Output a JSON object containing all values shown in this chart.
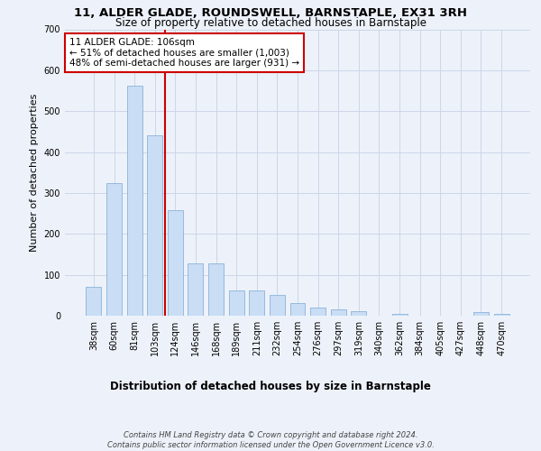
{
  "title": "11, ALDER GLADE, ROUNDSWELL, BARNSTAPLE, EX31 3RH",
  "subtitle": "Size of property relative to detached houses in Barnstaple",
  "xlabel": "Distribution of detached houses by size in Barnstaple",
  "ylabel": "Number of detached properties",
  "categories": [
    "38sqm",
    "60sqm",
    "81sqm",
    "103sqm",
    "124sqm",
    "146sqm",
    "168sqm",
    "189sqm",
    "211sqm",
    "232sqm",
    "254sqm",
    "276sqm",
    "297sqm",
    "319sqm",
    "340sqm",
    "362sqm",
    "384sqm",
    "405sqm",
    "427sqm",
    "448sqm",
    "470sqm"
  ],
  "values": [
    70,
    325,
    562,
    440,
    258,
    128,
    128,
    62,
    62,
    50,
    30,
    20,
    15,
    12,
    0,
    5,
    0,
    0,
    0,
    8,
    5
  ],
  "bar_color": "#c9ddf5",
  "bar_edge_color": "#7aa8d2",
  "grid_color": "#ccd6e8",
  "bg_color": "#edf2fa",
  "vline_color": "#cc0000",
  "vline_x": 3.5,
  "annotation_text": "11 ALDER GLADE: 106sqm\n← 51% of detached houses are smaller (1,003)\n48% of semi-detached houses are larger (931) →",
  "annotation_box_color": "#ffffff",
  "annotation_box_edge": "#cc0000",
  "ylim": [
    0,
    700
  ],
  "yticks": [
    0,
    100,
    200,
    300,
    400,
    500,
    600,
    700
  ],
  "footer": "Contains HM Land Registry data © Crown copyright and database right 2024.\nContains public sector information licensed under the Open Government Licence v3.0.",
  "title_fontsize": 9.5,
  "subtitle_fontsize": 8.5,
  "xlabel_fontsize": 8.5,
  "ylabel_fontsize": 8,
  "tick_fontsize": 7,
  "annotation_fontsize": 7.5,
  "footer_fontsize": 6
}
